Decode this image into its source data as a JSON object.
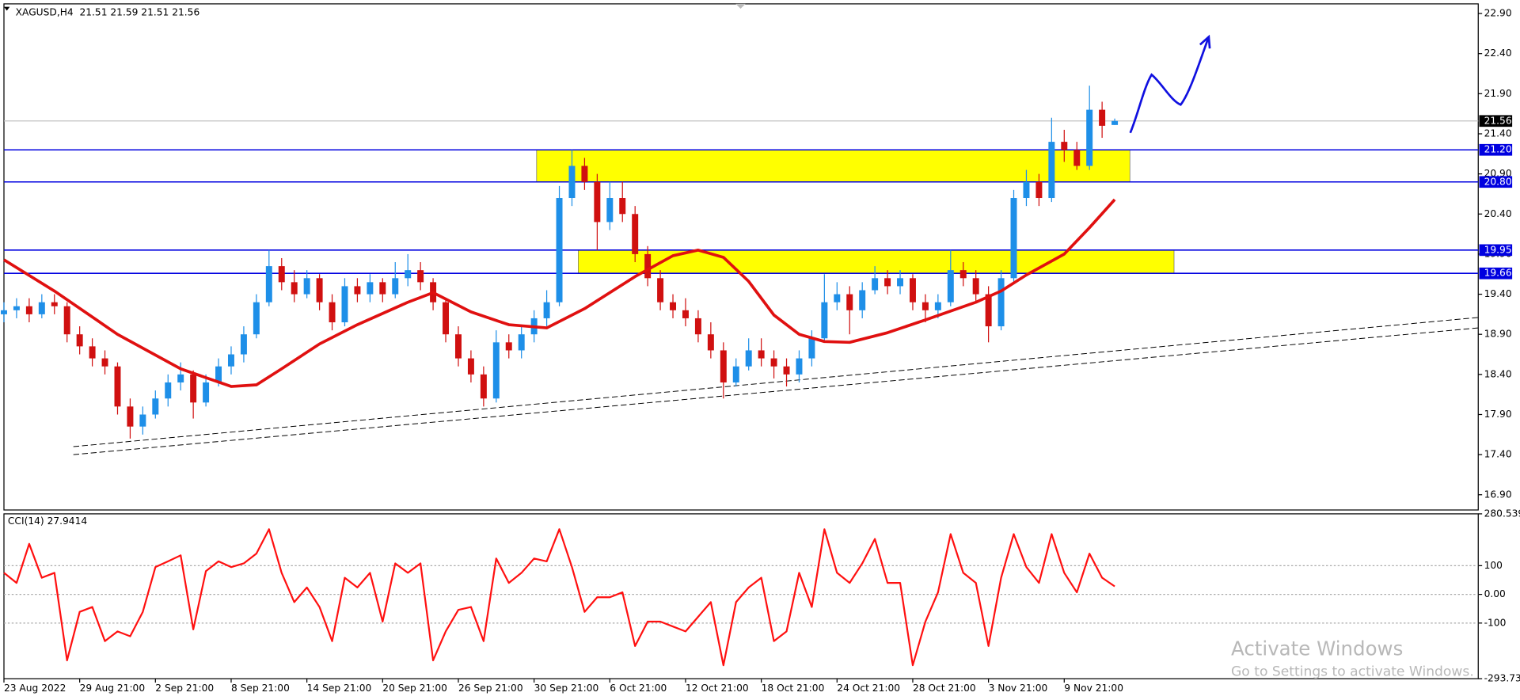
{
  "chart_data": {
    "type": "candlestick",
    "title": "XAGUSD,H4  21.51 21.59 21.51 21.56",
    "up_color": "#1e8fe8",
    "down_color": "#d01010",
    "xlim": [
      0,
      116.8
    ],
    "xticks": [
      {
        "value": 0,
        "label": "23 Aug 2022"
      },
      {
        "value": 6,
        "label": "29 Aug 21:00"
      },
      {
        "value": 12,
        "label": "2 Sep 21:00"
      },
      {
        "value": 18,
        "label": "8 Sep 21:00"
      },
      {
        "value": 24,
        "label": "14 Sep 21:00"
      },
      {
        "value": 30,
        "label": "20 Sep 21:00"
      },
      {
        "value": 36,
        "label": "26 Sep 21:00"
      },
      {
        "value": 42,
        "label": "30 Sep 21:00"
      },
      {
        "value": 48,
        "label": "6 Oct 21:00"
      },
      {
        "value": 54,
        "label": "12 Oct 21:00"
      },
      {
        "value": 60,
        "label": "18 Oct 21:00"
      },
      {
        "value": 66,
        "label": "24 Oct 21:00"
      },
      {
        "value": 72,
        "label": "28 Oct 21:00"
      },
      {
        "value": 78,
        "label": "3 Nov 21:00"
      },
      {
        "value": 84,
        "label": "9 Nov 21:00"
      }
    ],
    "ylim": [
      16.71,
      23.02
    ],
    "yticks": [
      {
        "value": 22.9,
        "label": "22.90"
      },
      {
        "value": 22.4,
        "label": "22.40"
      },
      {
        "value": 21.9,
        "label": "21.90"
      },
      {
        "value": 21.4,
        "label": "21.40"
      },
      {
        "value": 20.9,
        "label": "20.90"
      },
      {
        "value": 20.4,
        "label": "20.40"
      },
      {
        "value": 19.9,
        "label": "19.90"
      },
      {
        "value": 19.4,
        "label": "19.40"
      },
      {
        "value": 18.9,
        "label": "18.90"
      },
      {
        "value": 18.4,
        "label": "18.40"
      },
      {
        "value": 17.9,
        "label": "17.90"
      },
      {
        "value": 17.4,
        "label": "17.40"
      },
      {
        "value": 16.9,
        "label": "16.90"
      }
    ],
    "grid": false,
    "candles": [
      [
        19.15,
        19.3,
        19.05,
        19.2
      ],
      [
        19.2,
        19.35,
        19.1,
        19.25
      ],
      [
        19.25,
        19.35,
        19.05,
        19.15
      ],
      [
        19.15,
        19.4,
        19.1,
        19.3
      ],
      [
        19.3,
        19.4,
        19.15,
        19.25
      ],
      [
        19.25,
        19.3,
        18.8,
        18.9
      ],
      [
        18.9,
        19.0,
        18.65,
        18.75
      ],
      [
        18.75,
        18.85,
        18.5,
        18.6
      ],
      [
        18.6,
        18.7,
        18.4,
        18.5
      ],
      [
        18.5,
        18.55,
        17.9,
        18.0
      ],
      [
        18.0,
        18.1,
        17.6,
        17.75
      ],
      [
        17.75,
        18.0,
        17.65,
        17.9
      ],
      [
        17.9,
        18.2,
        17.85,
        18.1
      ],
      [
        18.1,
        18.4,
        18.0,
        18.3
      ],
      [
        18.3,
        18.55,
        18.2,
        18.4
      ],
      [
        18.4,
        18.45,
        17.85,
        18.05
      ],
      [
        18.05,
        18.4,
        18.0,
        18.3
      ],
      [
        18.3,
        18.6,
        18.25,
        18.5
      ],
      [
        18.5,
        18.75,
        18.4,
        18.65
      ],
      [
        18.65,
        19.0,
        18.55,
        18.9
      ],
      [
        18.9,
        19.4,
        18.85,
        19.3
      ],
      [
        19.3,
        19.95,
        19.25,
        19.75
      ],
      [
        19.75,
        19.85,
        19.45,
        19.55
      ],
      [
        19.55,
        19.7,
        19.3,
        19.4
      ],
      [
        19.4,
        19.7,
        19.35,
        19.6
      ],
      [
        19.6,
        19.65,
        19.2,
        19.3
      ],
      [
        19.3,
        19.4,
        18.95,
        19.05
      ],
      [
        19.05,
        19.6,
        19.0,
        19.5
      ],
      [
        19.5,
        19.6,
        19.3,
        19.4
      ],
      [
        19.4,
        19.65,
        19.3,
        19.55
      ],
      [
        19.55,
        19.6,
        19.3,
        19.4
      ],
      [
        19.4,
        19.8,
        19.35,
        19.6
      ],
      [
        19.6,
        19.9,
        19.5,
        19.7
      ],
      [
        19.7,
        19.8,
        19.45,
        19.55
      ],
      [
        19.55,
        19.6,
        19.2,
        19.3
      ],
      [
        19.3,
        19.35,
        18.8,
        18.9
      ],
      [
        18.9,
        19.0,
        18.5,
        18.6
      ],
      [
        18.6,
        18.7,
        18.3,
        18.4
      ],
      [
        18.4,
        18.5,
        18.0,
        18.1
      ],
      [
        18.1,
        18.95,
        18.05,
        18.8
      ],
      [
        18.8,
        18.9,
        18.6,
        18.7
      ],
      [
        18.7,
        19.0,
        18.6,
        18.9
      ],
      [
        18.9,
        19.2,
        18.8,
        19.1
      ],
      [
        19.1,
        19.45,
        19.0,
        19.3
      ],
      [
        19.3,
        20.75,
        19.25,
        20.6
      ],
      [
        20.6,
        21.2,
        20.5,
        21.0
      ],
      [
        21.0,
        21.1,
        20.7,
        20.8
      ],
      [
        20.8,
        20.9,
        19.95,
        20.3
      ],
      [
        20.3,
        20.8,
        20.2,
        20.6
      ],
      [
        20.6,
        20.8,
        20.3,
        20.4
      ],
      [
        20.4,
        20.5,
        19.8,
        19.9
      ],
      [
        19.9,
        20.0,
        19.5,
        19.6
      ],
      [
        19.6,
        19.7,
        19.2,
        19.3
      ],
      [
        19.3,
        19.4,
        19.1,
        19.2
      ],
      [
        19.2,
        19.35,
        19.0,
        19.1
      ],
      [
        19.1,
        19.2,
        18.8,
        18.9
      ],
      [
        18.9,
        19.05,
        18.6,
        18.7
      ],
      [
        18.7,
        18.8,
        18.1,
        18.3
      ],
      [
        18.3,
        18.6,
        18.25,
        18.5
      ],
      [
        18.5,
        18.85,
        18.45,
        18.7
      ],
      [
        18.7,
        18.85,
        18.5,
        18.6
      ],
      [
        18.6,
        18.7,
        18.35,
        18.5
      ],
      [
        18.5,
        18.6,
        18.25,
        18.4
      ],
      [
        18.4,
        18.7,
        18.3,
        18.6
      ],
      [
        18.6,
        18.95,
        18.5,
        18.85
      ],
      [
        18.85,
        19.65,
        18.8,
        19.3
      ],
      [
        19.3,
        19.55,
        19.2,
        19.4
      ],
      [
        19.4,
        19.5,
        18.9,
        19.2
      ],
      [
        19.2,
        19.55,
        19.1,
        19.45
      ],
      [
        19.45,
        19.75,
        19.4,
        19.6
      ],
      [
        19.6,
        19.7,
        19.4,
        19.5
      ],
      [
        19.5,
        19.7,
        19.4,
        19.6
      ],
      [
        19.6,
        19.65,
        19.2,
        19.3
      ],
      [
        19.3,
        19.4,
        19.05,
        19.2
      ],
      [
        19.2,
        19.4,
        19.1,
        19.3
      ],
      [
        19.3,
        19.95,
        19.25,
        19.7
      ],
      [
        19.7,
        19.8,
        19.5,
        19.6
      ],
      [
        19.6,
        19.7,
        19.3,
        19.4
      ],
      [
        19.4,
        19.5,
        18.8,
        19.0
      ],
      [
        19.0,
        19.7,
        18.95,
        19.6
      ],
      [
        19.6,
        20.7,
        19.55,
        20.6
      ],
      [
        20.6,
        20.95,
        20.5,
        20.8
      ],
      [
        20.8,
        20.9,
        20.5,
        20.6
      ],
      [
        20.6,
        21.6,
        20.55,
        21.3
      ],
      [
        21.3,
        21.45,
        21.05,
        21.2
      ],
      [
        21.2,
        21.3,
        20.95,
        21.0
      ],
      [
        21.0,
        22.0,
        20.95,
        21.7
      ],
      [
        21.7,
        21.8,
        21.35,
        21.5
      ],
      [
        21.51,
        21.59,
        21.51,
        21.56
      ]
    ],
    "moving_average": {
      "color": "#e01010",
      "x": [
        0,
        4,
        9,
        14,
        18,
        20,
        22,
        25,
        28,
        32,
        34,
        37,
        40,
        43,
        46,
        50,
        53,
        55,
        57,
        59,
        61,
        63,
        65,
        67,
        70,
        73,
        77,
        79,
        81,
        84,
        86,
        88
      ],
      "values": [
        19.83,
        19.44,
        18.9,
        18.47,
        18.25,
        18.27,
        18.47,
        18.78,
        19.02,
        19.3,
        19.42,
        19.18,
        19.02,
        18.98,
        19.22,
        19.62,
        19.88,
        19.95,
        19.86,
        19.56,
        19.14,
        18.9,
        18.81,
        18.8,
        18.92,
        19.08,
        19.3,
        19.44,
        19.64,
        19.9,
        20.23,
        20.58
      ]
    },
    "trendlines": [
      {
        "x": [
          5.5,
          116.8
        ],
        "values": [
          17.5,
          19.11
        ]
      },
      {
        "x": [
          5.5,
          116.8
        ],
        "values": [
          17.4,
          18.98
        ]
      }
    ],
    "zones": [
      {
        "x": [
          42.2,
          89.2
        ],
        "range": [
          20.8,
          21.2
        ]
      },
      {
        "x": [
          45.5,
          92.7
        ],
        "range": [
          19.66,
          19.95
        ]
      }
    ],
    "zone_color": "#ffff00",
    "levels": [
      {
        "value": 21.2,
        "label": "21.20"
      },
      {
        "value": 20.8,
        "label": "20.80"
      },
      {
        "value": 19.95,
        "label": "19.95"
      },
      {
        "value": 19.66,
        "label": "19.66"
      }
    ],
    "level_color": "#0000e0",
    "current": {
      "value": 21.56,
      "label": "21.56"
    },
    "cci": {
      "label": "CCI(14) 27.9414",
      "color": "#ff1010",
      "ylim": [
        -293.733,
        280.539
      ],
      "yticks": [
        280.539,
        100,
        {
          "value": 0,
          "label": "0.00"
        },
        -100,
        -293.733
      ],
      "values": [
        75,
        40,
        176,
        58,
        75,
        -230,
        -61,
        -44,
        -163,
        -129,
        -146,
        -61,
        95,
        115,
        136,
        -122,
        81,
        115,
        95,
        108,
        142,
        227,
        75,
        -27,
        24,
        -44,
        -163,
        58,
        24,
        75,
        -95,
        108,
        75,
        108,
        -230,
        -129,
        -54,
        -44,
        -163,
        125,
        40,
        75,
        125,
        115,
        227,
        95,
        -61,
        -10,
        -10,
        7,
        -180,
        -95,
        -95,
        -112,
        -129,
        -78,
        -27,
        -247,
        -27,
        24,
        58,
        -163,
        -129,
        75,
        -44,
        227,
        75,
        40,
        108,
        193,
        40,
        40,
        -247,
        -95,
        7,
        210,
        75,
        40,
        -180,
        58,
        210,
        95,
        40,
        210,
        75,
        7,
        142,
        58,
        27.9414
      ]
    },
    "watermark": {
      "title": "Activate Windows",
      "subtitle": "Go to Settings to activate Windows."
    }
  }
}
